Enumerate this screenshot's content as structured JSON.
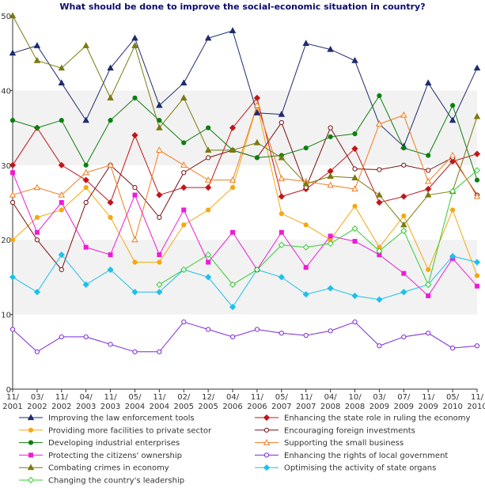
{
  "chart_data": {
    "type": "line",
    "title": "What should be done to improve the social-economic situation in country?",
    "xlabel": "",
    "ylabel": "",
    "ylim": [
      0,
      50
    ],
    "yticks": [
      0,
      10,
      20,
      30,
      40,
      50
    ],
    "grid": "alternating horizontal bands",
    "legend_position": "bottom",
    "categories": [
      "11/\n2001",
      "03/\n2002",
      "11/\n2002",
      "04/\n2003",
      "11/\n2003",
      "05/\n2004",
      "11/\n2004",
      "02/\n2005",
      "12/\n2005",
      "04/\n2006",
      "11/\n2006",
      "05/\n2007",
      "11/\n2007",
      "04/\n2008",
      "10/\n2008",
      "03/\n2009",
      "07/\n2009",
      "11/\n2009",
      "05/\n2010",
      "11/\n2010"
    ],
    "series": [
      {
        "name": "Improving the law enforcement tools",
        "color": "#1f2c6e",
        "marker": "triangle-up",
        "filled": true,
        "values": [
          45,
          46,
          41,
          36,
          43,
          47,
          38,
          41,
          47,
          48,
          37,
          36.8,
          46.3,
          45.5,
          44,
          35.5,
          32.5,
          41,
          36,
          43
        ]
      },
      {
        "name": "Enhancing the state role in ruling the economy",
        "color": "#c0171a",
        "marker": "diamond",
        "filled": true,
        "values": [
          30,
          35,
          30,
          28,
          25,
          34,
          26,
          27,
          27,
          35,
          39,
          25.8,
          26.8,
          29.2,
          32.2,
          25,
          25.8,
          26.8,
          30.5,
          31.5
        ]
      },
      {
        "name": "Providing more facilities to private sector",
        "color": "#f5a80f",
        "marker": "circle",
        "filled": true,
        "values": [
          20,
          23,
          24,
          27,
          23,
          17,
          17,
          22,
          24,
          27,
          38,
          23.5,
          22,
          20,
          24.5,
          19,
          23.2,
          16,
          24,
          15.2
        ]
      },
      {
        "name": "Encouraging foreign investments",
        "color": "#7a1010",
        "marker": "circle",
        "filled": false,
        "values": [
          25,
          20,
          16,
          25,
          30,
          27,
          23,
          29,
          31,
          32,
          31,
          35.7,
          27,
          35,
          29.5,
          29.4,
          30,
          29.3,
          31,
          26
        ]
      },
      {
        "name": "Developing industrial enterprises",
        "color": "#0d7f10",
        "marker": "circle",
        "filled": true,
        "values": [
          36,
          35,
          36,
          30,
          36,
          39,
          36,
          33,
          35,
          32,
          31,
          31.3,
          32.3,
          33.8,
          34.2,
          39.3,
          32.3,
          31.3,
          38,
          28
        ]
      },
      {
        "name": "Supporting the small business",
        "color": "#f07d1f",
        "marker": "triangle-up",
        "filled": false,
        "values": [
          26,
          27,
          26,
          29,
          30,
          20,
          32,
          30,
          28,
          28,
          38,
          28.2,
          27.8,
          27.3,
          26.8,
          35.5,
          36.7,
          27.8,
          31.3,
          25.8
        ]
      },
      {
        "name": "Protecting the citizens' ownership",
        "color": "#ee1bd6",
        "marker": "square",
        "filled": true,
        "values": [
          29,
          21,
          25,
          19,
          18,
          26,
          18,
          24,
          17,
          21,
          16,
          21,
          16.3,
          20.5,
          19.8,
          18,
          15.5,
          12.5,
          17.5,
          13.8
        ]
      },
      {
        "name": "Enhancing the rights of local government",
        "color": "#7d28d8",
        "marker": "circle",
        "filled": false,
        "values": [
          8,
          5,
          7,
          7,
          6,
          5,
          5,
          9,
          8,
          7,
          8,
          7.5,
          7.2,
          7.8,
          9,
          5.8,
          7,
          7.5,
          5.5,
          5.8
        ]
      },
      {
        "name": "Combating crimes in economy",
        "color": "#7a7a0e",
        "marker": "triangle-up",
        "filled": true,
        "values": [
          50,
          44,
          43,
          46,
          39,
          46,
          35,
          39,
          32,
          32,
          33,
          31,
          27.5,
          28.5,
          28.3,
          26,
          22,
          26,
          26.5,
          36.5
        ]
      },
      {
        "name": "Optimising the activity of state organs",
        "color": "#1ec0ea",
        "marker": "diamond",
        "filled": true,
        "values": [
          15,
          13,
          18,
          14,
          16,
          13,
          13,
          16,
          15,
          11,
          16,
          15,
          12.7,
          13.5,
          12.5,
          12,
          13,
          14,
          17.8,
          17
        ]
      },
      {
        "name": "Changing the country's leadership",
        "color": "#36cc36",
        "marker": "diamond",
        "filled": false,
        "values": [
          null,
          null,
          null,
          null,
          null,
          null,
          14,
          16,
          18,
          14,
          16,
          19.3,
          19,
          19.5,
          21.5,
          18.5,
          21.2,
          14,
          26.5,
          29.3
        ]
      }
    ]
  }
}
